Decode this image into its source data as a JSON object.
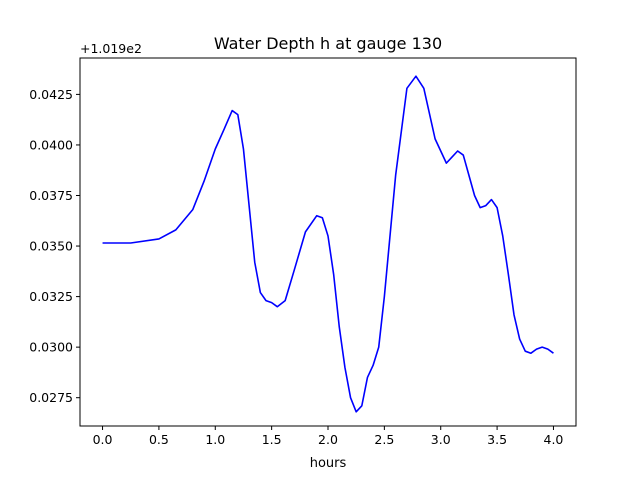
{
  "chart_data": {
    "type": "line",
    "title": "Water Depth h at gauge 130",
    "xlabel": "hours",
    "ylabel": "",
    "offset_label": "+1.019e2",
    "xlim": [
      -0.2,
      4.2
    ],
    "ylim": [
      0.0261,
      0.0443
    ],
    "xticks": [
      0.0,
      0.5,
      1.0,
      1.5,
      2.0,
      2.5,
      3.0,
      3.5,
      4.0
    ],
    "xtick_labels": [
      "0.0",
      "0.5",
      "1.0",
      "1.5",
      "2.0",
      "2.5",
      "3.0",
      "3.5",
      "4.0"
    ],
    "yticks": [
      0.0275,
      0.03,
      0.0325,
      0.035,
      0.0375,
      0.04,
      0.0425
    ],
    "ytick_labels": [
      "0.0275",
      "0.0300",
      "0.0325",
      "0.0350",
      "0.0375",
      "0.0400",
      "0.0425"
    ],
    "grid": false,
    "series": [
      {
        "color": "#0000ff",
        "x": [
          0.0,
          0.25,
          0.5,
          0.65,
          0.8,
          0.9,
          1.0,
          1.08,
          1.15,
          1.2,
          1.25,
          1.3,
          1.35,
          1.4,
          1.45,
          1.5,
          1.55,
          1.62,
          1.7,
          1.8,
          1.9,
          1.95,
          2.0,
          2.05,
          2.1,
          2.15,
          2.2,
          2.25,
          2.3,
          2.35,
          2.4,
          2.45,
          2.5,
          2.6,
          2.7,
          2.78,
          2.85,
          2.95,
          3.05,
          3.1,
          3.15,
          3.2,
          3.25,
          3.3,
          3.35,
          3.4,
          3.45,
          3.5,
          3.55,
          3.6,
          3.65,
          3.7,
          3.75,
          3.8,
          3.85,
          3.9,
          3.95,
          4.0
        ],
        "y": [
          0.03515,
          0.03515,
          0.03535,
          0.0358,
          0.0368,
          0.0382,
          0.0398,
          0.0408,
          0.0417,
          0.0415,
          0.0398,
          0.037,
          0.0342,
          0.0327,
          0.0323,
          0.0322,
          0.032,
          0.0323,
          0.0338,
          0.0357,
          0.0365,
          0.0364,
          0.0355,
          0.0336,
          0.031,
          0.029,
          0.0275,
          0.0268,
          0.0271,
          0.0285,
          0.0291,
          0.03,
          0.0325,
          0.0385,
          0.0428,
          0.0434,
          0.0428,
          0.0403,
          0.0391,
          0.0394,
          0.0397,
          0.0395,
          0.0385,
          0.0375,
          0.0369,
          0.037,
          0.0373,
          0.0369,
          0.0355,
          0.0336,
          0.0316,
          0.0304,
          0.0298,
          0.0297,
          0.0299,
          0.03,
          0.0299,
          0.0297
        ]
      }
    ]
  }
}
